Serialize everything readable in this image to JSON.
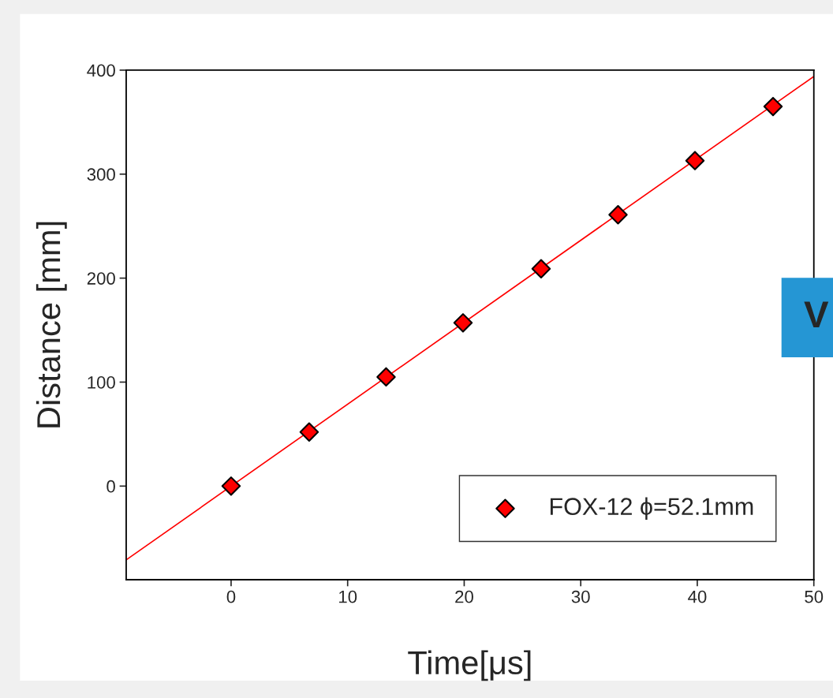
{
  "chart_data": {
    "type": "scatter",
    "xlabel": "Time[μs]",
    "ylabel": "Distance [mm]",
    "series": [
      {
        "name": "FOX-12 ϕ=52.1mm",
        "color": "#ff0000",
        "marker": "diamond",
        "x": [
          0,
          6.7,
          13.3,
          19.9,
          26.6,
          33.2,
          39.8,
          46.5
        ],
        "values": [
          0,
          52,
          105,
          157,
          209,
          261,
          313,
          365
        ]
      },
      {
        "type": "line",
        "color": "#ff0000",
        "line_style": "solid",
        "x": [
          -9,
          50
        ],
        "values": [
          -71,
          394
        ]
      }
    ],
    "xlim": [
      -9,
      50
    ],
    "ylim": [
      -90,
      400
    ],
    "xticks": [
      0,
      10,
      20,
      30,
      40,
      50
    ],
    "yticks": [
      0,
      100,
      200,
      300,
      400
    ],
    "grid": false,
    "legend": "bottom right",
    "annotations": [
      "V"
    ]
  }
}
